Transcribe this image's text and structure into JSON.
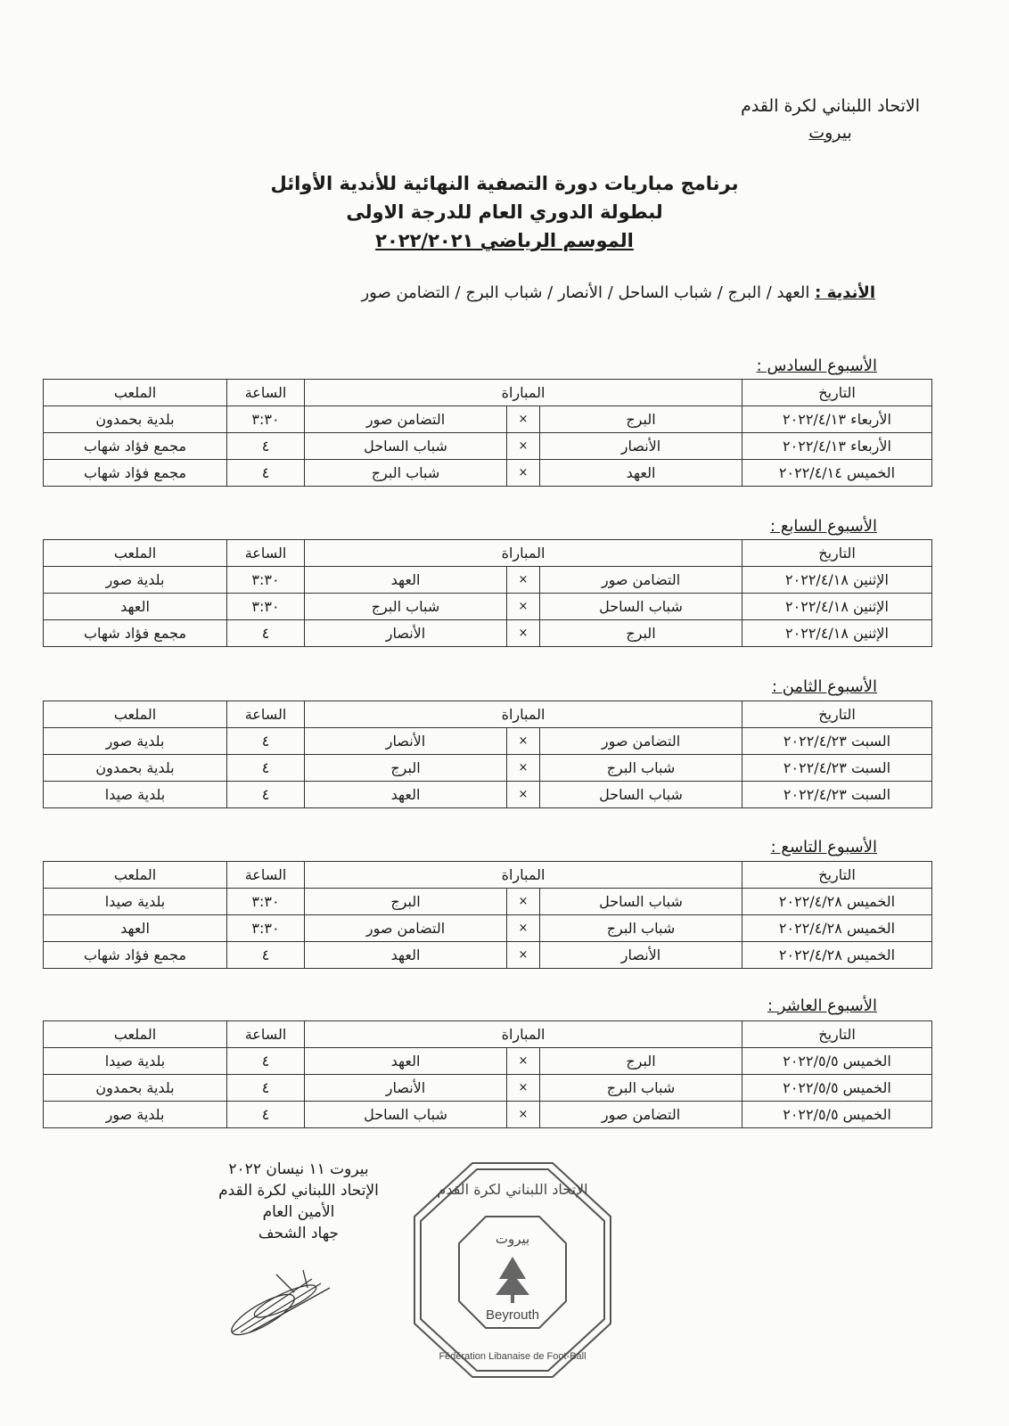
{
  "header": {
    "organization": "الاتحاد اللبناني لكرة القدم",
    "city": "بيروت"
  },
  "title": {
    "line1": "برنامج مباريات دورة التصفية النهائية للأندية الأوائل",
    "line2": "لبطولة الدوري العام للدرجة الاولى",
    "line3": "الموسم الرياضي ٢٠٢٢/٢٠٢١"
  },
  "clubs": {
    "label": "الأندية :",
    "list": "العهد / البرج / شباب الساحل / الأنصار / شباب البرج / التضامن صور"
  },
  "table_headers": {
    "date": "التاريخ",
    "match": "المباراة",
    "time": "الساعة",
    "venue": "الملعب"
  },
  "weeks": [
    {
      "title": "الأسبوع السادس :",
      "rows": [
        {
          "date": "الأربعاء ٢٠٢٢/٤/١٣",
          "team1": "البرج",
          "vs": "×",
          "team2": "التضامن صور",
          "time": "٣:٣٠",
          "venue": "بلدية بحمدون"
        },
        {
          "date": "الأربعاء ٢٠٢٢/٤/١٣",
          "team1": "الأنصار",
          "vs": "×",
          "team2": "شباب الساحل",
          "time": "٤",
          "venue": "مجمع فؤاد شهاب"
        },
        {
          "date": "الخميس ٢٠٢٢/٤/١٤",
          "team1": "العهد",
          "vs": "×",
          "team2": "شباب البرج",
          "time": "٤",
          "venue": "مجمع فؤاد شهاب"
        }
      ]
    },
    {
      "title": "الأسبوع السابع :",
      "rows": [
        {
          "date": "الإثنين ٢٠٢٢/٤/١٨",
          "team1": "التضامن صور",
          "vs": "×",
          "team2": "العهد",
          "time": "٣:٣٠",
          "venue": "بلدية صور"
        },
        {
          "date": "الإثنين ٢٠٢٢/٤/١٨",
          "team1": "شباب الساحل",
          "vs": "×",
          "team2": "شباب البرج",
          "time": "٣:٣٠",
          "venue": "العهد"
        },
        {
          "date": "الإثنين ٢٠٢٢/٤/١٨",
          "team1": "البرج",
          "vs": "×",
          "team2": "الأنصار",
          "time": "٤",
          "venue": "مجمع فؤاد شهاب"
        }
      ]
    },
    {
      "title": "الأسبوع الثامن :",
      "rows": [
        {
          "date": "السبت ٢٠٢٢/٤/٢٣",
          "team1": "التضامن صور",
          "vs": "×",
          "team2": "الأنصار",
          "time": "٤",
          "venue": "بلدية صور"
        },
        {
          "date": "السبت ٢٠٢٢/٤/٢٣",
          "team1": "شباب البرج",
          "vs": "×",
          "team2": "البرج",
          "time": "٤",
          "venue": "بلدية بحمدون"
        },
        {
          "date": "السبت ٢٠٢٢/٤/٢٣",
          "team1": "شباب الساحل",
          "vs": "×",
          "team2": "العهد",
          "time": "٤",
          "venue": "بلدية صيدا"
        }
      ]
    },
    {
      "title": "الأسبوع التاسع :",
      "rows": [
        {
          "date": "الخميس ٢٠٢٢/٤/٢٨",
          "team1": "شباب الساحل",
          "vs": "×",
          "team2": "البرج",
          "time": "٣:٣٠",
          "venue": "بلدية صيدا"
        },
        {
          "date": "الخميس ٢٠٢٢/٤/٢٨",
          "team1": "شباب البرج",
          "vs": "×",
          "team2": "التضامن صور",
          "time": "٣:٣٠",
          "venue": "العهد"
        },
        {
          "date": "الخميس ٢٠٢٢/٤/٢٨",
          "team1": "الأنصار",
          "vs": "×",
          "team2": "العهد",
          "time": "٤",
          "venue": "مجمع فؤاد شهاب"
        }
      ]
    },
    {
      "title": "الأسبوع العاشر :",
      "rows": [
        {
          "date": "الخميس ٢٠٢٢/٥/٥",
          "team1": "البرج",
          "vs": "×",
          "team2": "العهد",
          "time": "٤",
          "venue": "بلدية صيدا"
        },
        {
          "date": "الخميس ٢٠٢٢/٥/٥",
          "team1": "شباب البرج",
          "vs": "×",
          "team2": "الأنصار",
          "time": "٤",
          "venue": "بلدية بحمدون"
        },
        {
          "date": "الخميس ٢٠٢٢/٥/٥",
          "team1": "التضامن صور",
          "vs": "×",
          "team2": "شباب الساحل",
          "time": "٤",
          "venue": "بلدية صور"
        }
      ]
    }
  ],
  "footer": {
    "place_date": "بيروت ١١ نيسان ٢٠٢٢",
    "organization": "الإتحاد اللبناني لكرة القدم",
    "position": "الأمين العام",
    "name": "جهاد الشحف"
  },
  "stamp": {
    "arabic_ring": "الإتحاد اللبناني لكرة القدم",
    "arabic_city": "بيروت",
    "latin_city": "Beyrouth",
    "latin_ring": "Fédération Libanaise de Foot-Ball"
  }
}
